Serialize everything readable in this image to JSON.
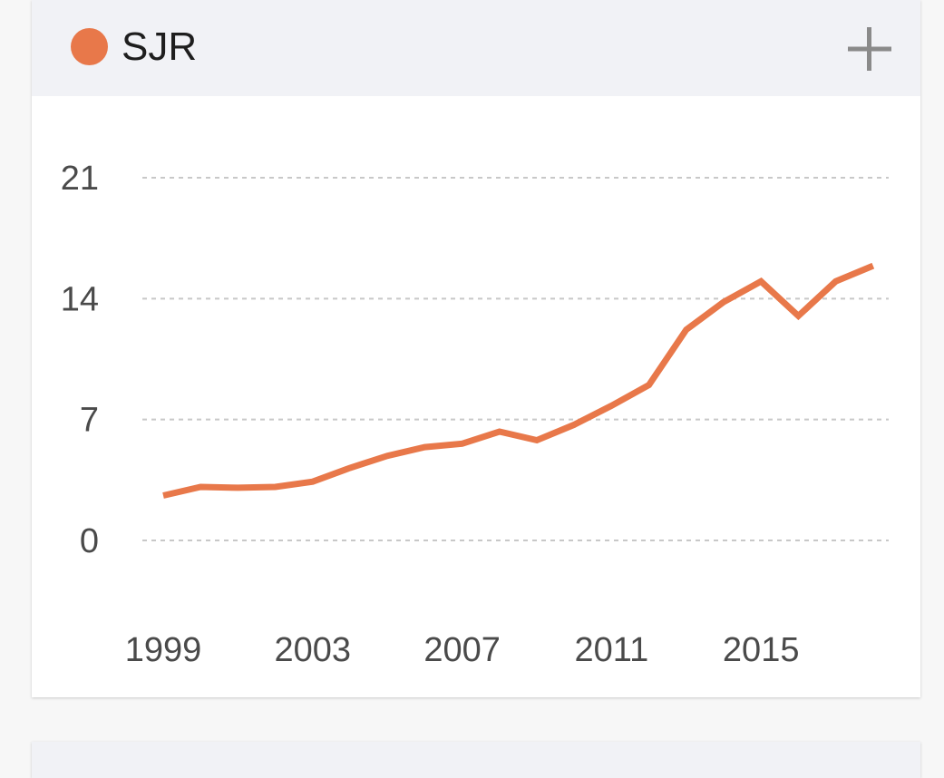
{
  "header": {
    "title": "SJR",
    "expand_icon": "plus-icon"
  },
  "colors": {
    "series": "#e8784a",
    "grid": "#c8c8c8",
    "icon": "#8a8a8a"
  },
  "chart_data": {
    "type": "line",
    "title": "",
    "xlabel": "",
    "ylabel": "",
    "x": [
      1999,
      2000,
      2001,
      2002,
      2003,
      2004,
      2005,
      2006,
      2007,
      2008,
      2009,
      2010,
      2011,
      2012,
      2013,
      2014,
      2015,
      2016,
      2017,
      2018
    ],
    "series": [
      {
        "name": "SJR",
        "values": [
          2.6,
          3.1,
          3.05,
          3.1,
          3.4,
          4.2,
          4.9,
          5.4,
          5.6,
          6.3,
          5.8,
          6.7,
          7.8,
          9.0,
          12.2,
          13.8,
          15.0,
          13.0,
          15.0,
          15.9
        ]
      }
    ],
    "xlim": [
      1999,
      2018
    ],
    "ylim": [
      0,
      21
    ],
    "yticks": [
      "0",
      "7",
      "14",
      "21"
    ],
    "xticks": [
      "1999",
      "2003",
      "2007",
      "2011",
      "2015"
    ],
    "grid": true,
    "legend": "top-left"
  }
}
